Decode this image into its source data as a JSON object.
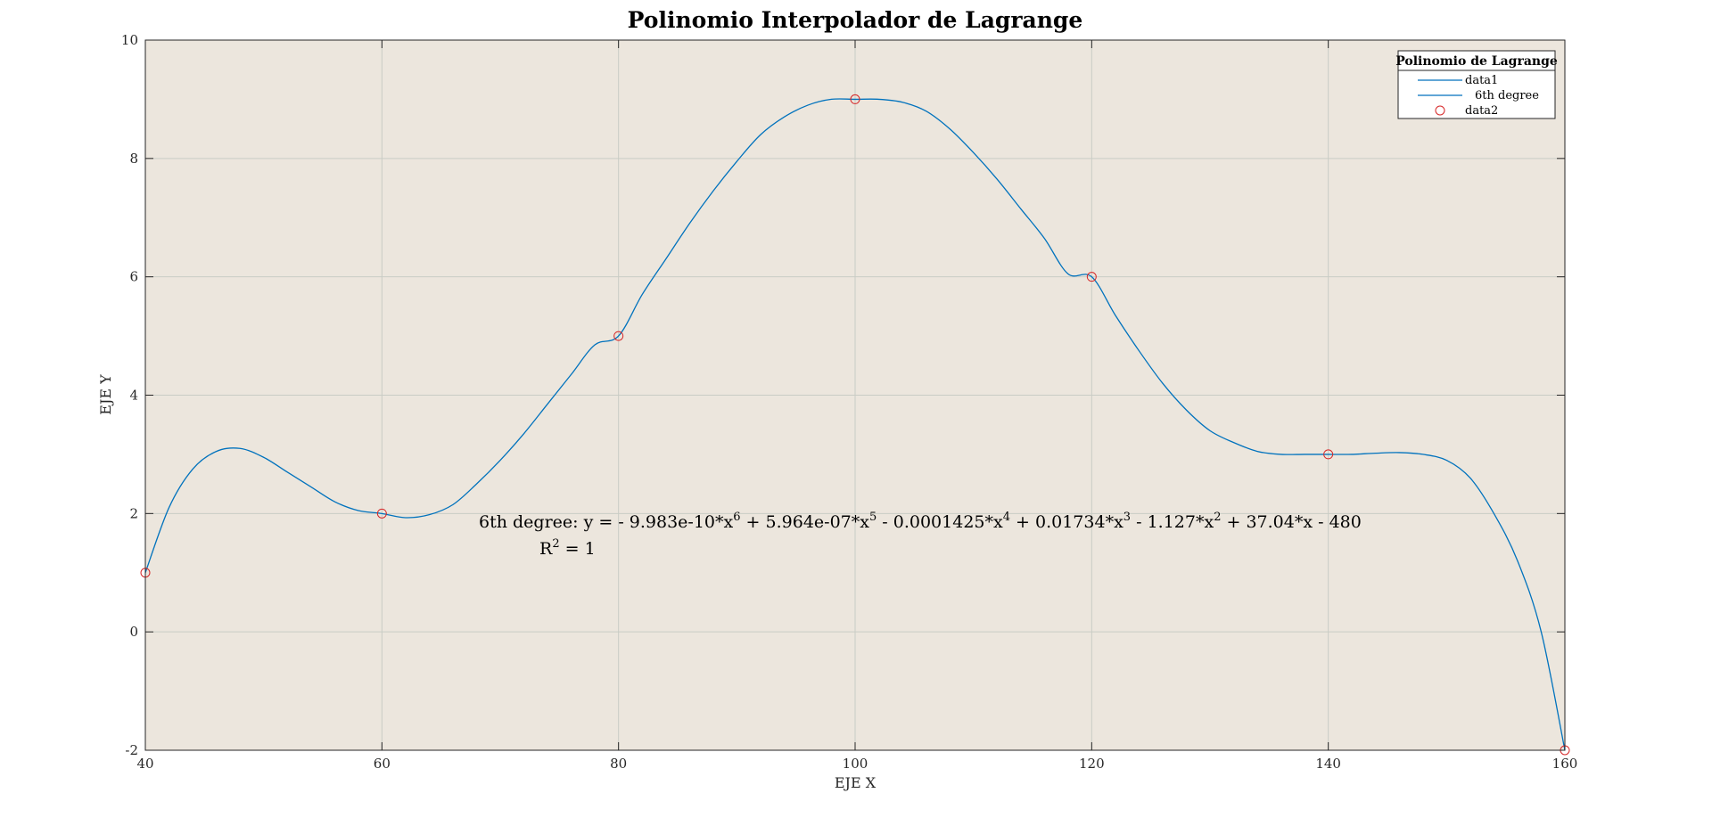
{
  "colors": {
    "plot_background": "#ece6dd",
    "grid": "#c9ccc5",
    "curve": "#0072bd",
    "markers": "#d62728",
    "axes": "#262626"
  },
  "chart_data": {
    "type": "line",
    "title": "Polinomio Interpolador de Lagrange",
    "xlabel": "EJE X",
    "ylabel": "EJE Y",
    "xlim": [
      40,
      160
    ],
    "ylim": [
      -2,
      10
    ],
    "xticks": [
      40,
      60,
      80,
      100,
      120,
      140,
      160
    ],
    "yticks": [
      -2,
      0,
      2,
      4,
      6,
      8,
      10
    ],
    "grid": true,
    "legend": {
      "title": "Polinomio de Lagrange",
      "placement": "top-right",
      "entries": [
        "data1",
        "6th degree",
        "data2"
      ]
    },
    "series": [
      {
        "name": "data1",
        "kind": "line",
        "x": [
          40,
          42,
          44,
          46,
          48,
          50,
          52,
          54,
          56,
          58,
          60,
          62,
          64,
          66,
          68,
          70,
          72,
          74,
          76,
          78,
          80,
          82,
          84,
          86,
          88,
          90,
          92,
          94,
          96,
          98,
          100,
          102,
          104,
          106,
          108,
          110,
          112,
          114,
          116,
          118,
          120,
          122,
          124,
          126,
          128,
          130,
          132,
          134,
          136,
          138,
          140,
          142,
          144,
          146,
          148,
          150,
          152,
          154,
          156,
          158,
          160
        ],
        "y": [
          1.0,
          2.1,
          2.75,
          3.05,
          3.1,
          2.95,
          2.7,
          2.45,
          2.2,
          2.05,
          2.0,
          1.93,
          1.98,
          2.15,
          2.5,
          2.9,
          3.35,
          3.85,
          4.35,
          4.85,
          5.0,
          5.7,
          6.3,
          6.9,
          7.45,
          7.95,
          8.4,
          8.7,
          8.9,
          9.0,
          9.0,
          9.0,
          8.95,
          8.8,
          8.5,
          8.1,
          7.65,
          7.15,
          6.65,
          6.05,
          6.0,
          5.35,
          4.75,
          4.2,
          3.75,
          3.4,
          3.2,
          3.05,
          3.0,
          3.0,
          3.0,
          3.0,
          3.02,
          3.03,
          3.0,
          2.9,
          2.6,
          2.0,
          1.2,
          0.0,
          -2.0
        ]
      },
      {
        "name": "data2",
        "kind": "markers",
        "x": [
          40,
          60,
          80,
          100,
          120,
          140,
          160
        ],
        "y": [
          1,
          2,
          5,
          9,
          6,
          3,
          -2
        ]
      }
    ],
    "annotations": {
      "equation_prefix": "6th degree:  y = - 9.983e-10*x",
      "equation_parts": [
        {
          "base": " + 5.964e-07*x",
          "exp": "5"
        },
        {
          "base": " - 0.0001425*x",
          "exp": "4"
        },
        {
          "base": " + 0.01734*x",
          "exp": "3"
        },
        {
          "base": " - 1.127*x",
          "exp": "2"
        }
      ],
      "equation_first_exp": "6",
      "equation_tail": " + 37.04*x - 480",
      "r2_prefix": "R",
      "r2_exp": "2",
      "r2_suffix": " = 1"
    }
  }
}
